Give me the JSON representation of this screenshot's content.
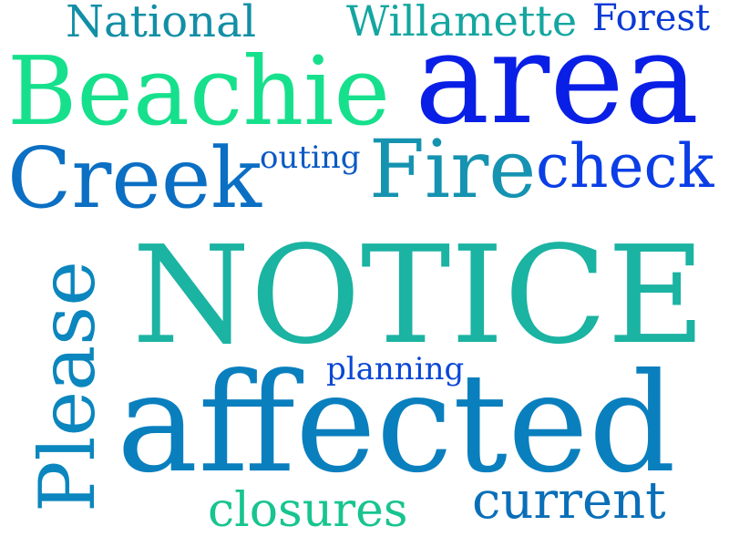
{
  "words": [
    {
      "id": "notice",
      "text": "NOTICE",
      "color": "#1bb3a2"
    },
    {
      "id": "affected",
      "text": "affected",
      "color": "#0a7fbe"
    },
    {
      "id": "area",
      "text": "area",
      "color": "#0a1fe6"
    },
    {
      "id": "beachie",
      "text": "Beachie",
      "color": "#16e08c"
    },
    {
      "id": "creek",
      "text": "Creek",
      "color": "#0b6fc3"
    },
    {
      "id": "fire",
      "text": "Fire",
      "color": "#1593b0"
    },
    {
      "id": "check",
      "text": "check",
      "color": "#0b3ee6"
    },
    {
      "id": "please",
      "text": "Please",
      "color": "#0b86be"
    },
    {
      "id": "national",
      "text": "National",
      "color": "#128fa6"
    },
    {
      "id": "willamette",
      "text": "Willamette",
      "color": "#14a6a0"
    },
    {
      "id": "forest",
      "text": "Forest",
      "color": "#0b3ad6"
    },
    {
      "id": "outing",
      "text": "outing",
      "color": "#0b59c4"
    },
    {
      "id": "planning",
      "text": "planning",
      "color": "#0b47d6"
    },
    {
      "id": "closures",
      "text": "closures",
      "color": "#18c48f"
    },
    {
      "id": "current",
      "text": "current",
      "color": "#0a6fb8"
    }
  ]
}
